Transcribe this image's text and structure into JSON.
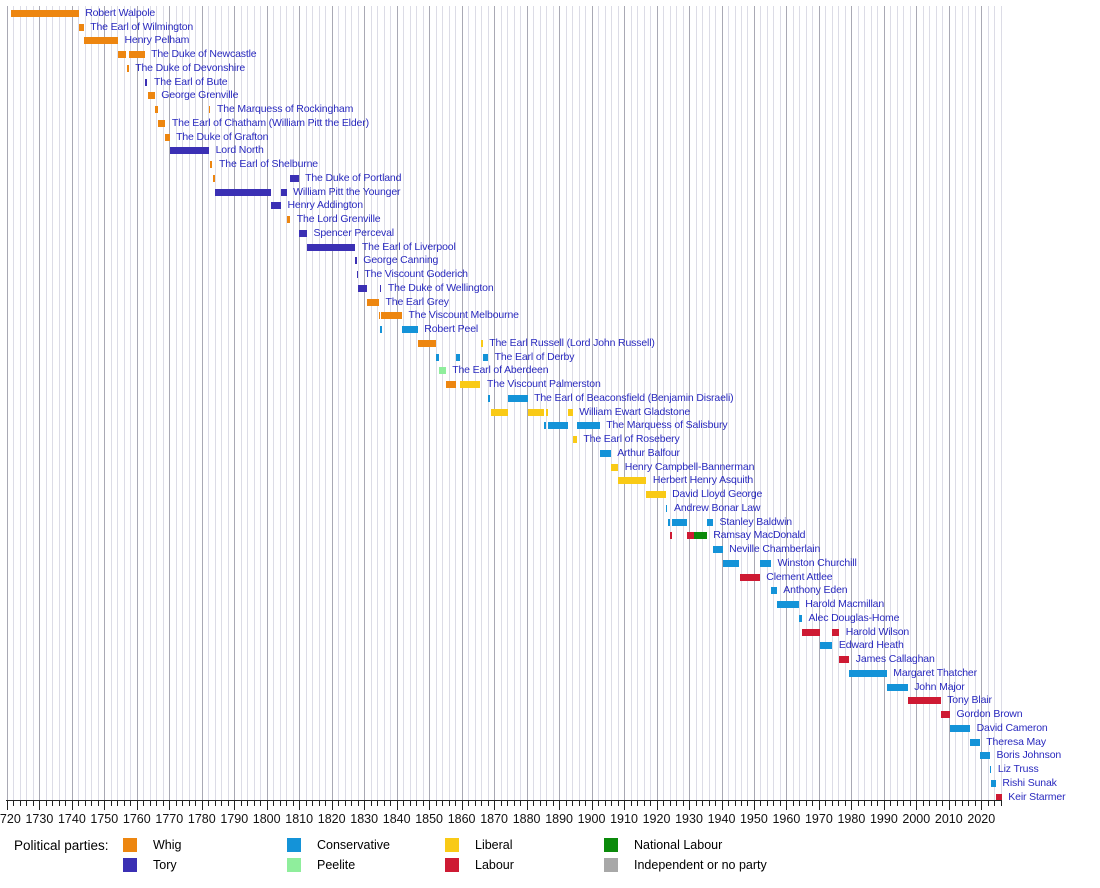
{
  "chart_data": {
    "type": "bar",
    "subtype": "horizontal-timeline-gantt",
    "title": "",
    "xlabel": "",
    "ylabel": "",
    "axis": {
      "start_year": 1720,
      "end_year": 2026,
      "minor_tick_step_years": 2,
      "major_tick_step_years": 10,
      "decade_labels": [
        1720,
        1730,
        1740,
        1750,
        1760,
        1770,
        1780,
        1790,
        1800,
        1810,
        1820,
        1830,
        1840,
        1850,
        1860,
        1870,
        1880,
        1890,
        1900,
        1910,
        1920,
        1930,
        1940,
        1950,
        1960,
        1970,
        1980,
        1990,
        2000,
        2010,
        2020
      ],
      "grid": "on",
      "gridline_step_years": 2
    },
    "colors": {
      "whig": "#ed8610",
      "tory": "#3b30b4",
      "conservative": "#1493d8",
      "peelite": "#8fee9c",
      "liberal": "#f9ca16",
      "labour": "#ce1a33",
      "national_labour": "#0b8a0b",
      "independent": "#a8a8a8",
      "label_text": "#2929be",
      "gridline_minor": "#dcdce6",
      "gridline_major": "#a9a9b4",
      "axis": "#222222"
    },
    "legend": {
      "heading": "Political parties:",
      "position": "bottom",
      "columns": [
        [
          {
            "label": "Whig",
            "party": "whig"
          },
          {
            "label": "Tory",
            "party": "tory"
          }
        ],
        [
          {
            "label": "Conservative",
            "party": "conservative"
          },
          {
            "label": "Peelite",
            "party": "peelite"
          }
        ],
        [
          {
            "label": "Liberal",
            "party": "liberal"
          },
          {
            "label": "Labour",
            "party": "labour"
          }
        ],
        [
          {
            "label": "National Labour",
            "party": "national_labour"
          },
          {
            "label": "Independent or no party",
            "party": "independent"
          }
        ]
      ]
    },
    "prime_ministers": [
      {
        "name": "Robert Walpole",
        "segments": [
          {
            "party": "whig",
            "start": 1721.25,
            "end": 1742.1
          }
        ]
      },
      {
        "name": "The Earl of Wilmington",
        "segments": [
          {
            "party": "whig",
            "start": 1742.15,
            "end": 1743.65
          }
        ]
      },
      {
        "name": "Henry Pelham",
        "segments": [
          {
            "party": "whig",
            "start": 1743.65,
            "end": 1754.2
          }
        ]
      },
      {
        "name": "The Duke of Newcastle",
        "segments": [
          {
            "party": "whig",
            "start": 1754.25,
            "end": 1756.85
          },
          {
            "party": "whig",
            "start": 1757.5,
            "end": 1762.4
          }
        ]
      },
      {
        "name": "The Duke of Devonshire",
        "segments": [
          {
            "party": "whig",
            "start": 1756.85,
            "end": 1757.5
          }
        ]
      },
      {
        "name": "The Earl of Bute",
        "segments": [
          {
            "party": "tory",
            "start": 1762.4,
            "end": 1763.3
          }
        ]
      },
      {
        "name": "George Grenville",
        "segments": [
          {
            "party": "whig",
            "start": 1763.3,
            "end": 1765.55
          }
        ]
      },
      {
        "name": "The Marquess of Rockingham",
        "segments": [
          {
            "party": "whig",
            "start": 1765.55,
            "end": 1766.6
          },
          {
            "party": "whig",
            "start": 1782.25,
            "end": 1782.5
          }
        ]
      },
      {
        "name": "The Earl of Chatham (William Pitt the Elder)",
        "segments": [
          {
            "party": "whig",
            "start": 1766.6,
            "end": 1768.8
          }
        ]
      },
      {
        "name": "The Duke of Grafton",
        "segments": [
          {
            "party": "whig",
            "start": 1768.8,
            "end": 1770.1
          }
        ]
      },
      {
        "name": "Lord North",
        "segments": [
          {
            "party": "tory",
            "start": 1770.1,
            "end": 1782.25
          }
        ]
      },
      {
        "name": "The Earl of Shelburne",
        "segments": [
          {
            "party": "whig",
            "start": 1782.5,
            "end": 1783.3
          }
        ]
      },
      {
        "name": "The Duke of Portland",
        "segments": [
          {
            "party": "whig",
            "start": 1783.3,
            "end": 1783.95
          },
          {
            "party": "tory",
            "start": 1807.25,
            "end": 1809.8
          }
        ]
      },
      {
        "name": "William Pitt the Younger",
        "segments": [
          {
            "party": "tory",
            "start": 1783.95,
            "end": 1801.2
          },
          {
            "party": "tory",
            "start": 1804.4,
            "end": 1806.1
          }
        ]
      },
      {
        "name": "Henry Addington",
        "segments": [
          {
            "party": "tory",
            "start": 1801.2,
            "end": 1804.4
          }
        ]
      },
      {
        "name": "The Lord Grenville",
        "segments": [
          {
            "party": "whig",
            "start": 1806.1,
            "end": 1807.25
          }
        ]
      },
      {
        "name": "Spencer Perceval",
        "segments": [
          {
            "party": "tory",
            "start": 1809.8,
            "end": 1812.4
          }
        ]
      },
      {
        "name": "The Earl of Liverpool",
        "segments": [
          {
            "party": "tory",
            "start": 1812.45,
            "end": 1827.3
          }
        ]
      },
      {
        "name": "George Canning",
        "segments": [
          {
            "party": "tory",
            "start": 1827.3,
            "end": 1827.6
          }
        ]
      },
      {
        "name": "The Viscount Goderich",
        "segments": [
          {
            "party": "tory",
            "start": 1827.65,
            "end": 1828.05
          }
        ]
      },
      {
        "name": "The Duke of Wellington",
        "segments": [
          {
            "party": "tory",
            "start": 1828.05,
            "end": 1830.9
          },
          {
            "party": "tory",
            "start": 1834.88,
            "end": 1834.95
          }
        ]
      },
      {
        "name": "The Earl Grey",
        "segments": [
          {
            "party": "whig",
            "start": 1830.9,
            "end": 1834.55
          }
        ]
      },
      {
        "name": "The Viscount Melbourne",
        "segments": [
          {
            "party": "whig",
            "start": 1834.55,
            "end": 1834.88
          },
          {
            "party": "whig",
            "start": 1835.3,
            "end": 1841.65
          }
        ]
      },
      {
        "name": "Robert Peel",
        "segments": [
          {
            "party": "conservative",
            "start": 1834.95,
            "end": 1835.3
          },
          {
            "party": "conservative",
            "start": 1841.65,
            "end": 1846.5
          }
        ]
      },
      {
        "name": "The Earl Russell (Lord John Russell)",
        "segments": [
          {
            "party": "whig",
            "start": 1846.5,
            "end": 1852.15
          },
          {
            "party": "liberal",
            "start": 1865.85,
            "end": 1866.5
          }
        ]
      },
      {
        "name": "The Earl of Derby",
        "segments": [
          {
            "party": "conservative",
            "start": 1852.15,
            "end": 1852.95
          },
          {
            "party": "conservative",
            "start": 1858.15,
            "end": 1859.45
          },
          {
            "party": "conservative",
            "start": 1866.5,
            "end": 1868.15
          }
        ]
      },
      {
        "name": "The Earl of Aberdeen",
        "segments": [
          {
            "party": "peelite",
            "start": 1852.95,
            "end": 1855.1
          }
        ]
      },
      {
        "name": "The Viscount Palmerston",
        "segments": [
          {
            "party": "whig",
            "start": 1855.1,
            "end": 1858.15
          },
          {
            "party": "liberal",
            "start": 1859.45,
            "end": 1865.8
          }
        ]
      },
      {
        "name": "The Earl of Beaconsfield (Benjamin Disraeli)",
        "segments": [
          {
            "party": "conservative",
            "start": 1868.15,
            "end": 1868.9
          },
          {
            "party": "conservative",
            "start": 1874.15,
            "end": 1880.3
          }
        ]
      },
      {
        "name": "William Ewart Gladstone",
        "segments": [
          {
            "party": "liberal",
            "start": 1868.9,
            "end": 1874.15
          },
          {
            "party": "liberal",
            "start": 1880.3,
            "end": 1885.45
          },
          {
            "party": "liberal",
            "start": 1886.1,
            "end": 1886.6
          },
          {
            "party": "liberal",
            "start": 1892.6,
            "end": 1894.2
          }
        ]
      },
      {
        "name": "The Marquess of Salisbury",
        "segments": [
          {
            "party": "conservative",
            "start": 1885.45,
            "end": 1886.1
          },
          {
            "party": "conservative",
            "start": 1886.6,
            "end": 1892.6
          },
          {
            "party": "conservative",
            "start": 1895.5,
            "end": 1902.55
          }
        ]
      },
      {
        "name": "The Earl of Rosebery",
        "segments": [
          {
            "party": "liberal",
            "start": 1894.2,
            "end": 1895.5
          }
        ]
      },
      {
        "name": "Arthur Balfour",
        "segments": [
          {
            "party": "conservative",
            "start": 1902.55,
            "end": 1905.9
          }
        ]
      },
      {
        "name": "Henry Campbell-Bannerman",
        "segments": [
          {
            "party": "liberal",
            "start": 1905.9,
            "end": 1908.25
          }
        ]
      },
      {
        "name": "Herbert Henry Asquith",
        "segments": [
          {
            "party": "liberal",
            "start": 1908.25,
            "end": 1916.9
          }
        ]
      },
      {
        "name": "David Lloyd George",
        "segments": [
          {
            "party": "liberal",
            "start": 1916.9,
            "end": 1922.8
          }
        ]
      },
      {
        "name": "Andrew Bonar Law",
        "segments": [
          {
            "party": "conservative",
            "start": 1922.8,
            "end": 1923.4
          }
        ]
      },
      {
        "name": "Stanley Baldwin",
        "segments": [
          {
            "party": "conservative",
            "start": 1923.4,
            "end": 1924.05
          },
          {
            "party": "conservative",
            "start": 1924.85,
            "end": 1929.4
          },
          {
            "party": "conservative",
            "start": 1935.45,
            "end": 1937.4
          }
        ]
      },
      {
        "name": "Ramsay MacDonald",
        "segments": [
          {
            "party": "labour",
            "start": 1924.05,
            "end": 1924.85
          },
          {
            "party": "labour",
            "start": 1929.4,
            "end": 1931.65
          },
          {
            "party": "national_labour",
            "start": 1931.65,
            "end": 1935.45
          }
        ]
      },
      {
        "name": "Neville Chamberlain",
        "segments": [
          {
            "party": "conservative",
            "start": 1937.4,
            "end": 1940.35
          }
        ]
      },
      {
        "name": "Winston Churchill",
        "segments": [
          {
            "party": "conservative",
            "start": 1940.35,
            "end": 1945.55
          },
          {
            "party": "conservative",
            "start": 1951.8,
            "end": 1955.25
          }
        ]
      },
      {
        "name": "Clement Attlee",
        "segments": [
          {
            "party": "labour",
            "start": 1945.55,
            "end": 1951.8
          }
        ]
      },
      {
        "name": "Anthony Eden",
        "segments": [
          {
            "party": "conservative",
            "start": 1955.25,
            "end": 1957.05
          }
        ]
      },
      {
        "name": "Harold Macmillan",
        "segments": [
          {
            "party": "conservative",
            "start": 1957.05,
            "end": 1963.8
          }
        ]
      },
      {
        "name": "Alec Douglas-Home",
        "segments": [
          {
            "party": "conservative",
            "start": 1963.8,
            "end": 1964.8
          }
        ]
      },
      {
        "name": "Harold Wilson",
        "segments": [
          {
            "party": "labour",
            "start": 1964.8,
            "end": 1970.45
          },
          {
            "party": "labour",
            "start": 1974.15,
            "end": 1976.25
          }
        ]
      },
      {
        "name": "Edward Heath",
        "segments": [
          {
            "party": "conservative",
            "start": 1970.45,
            "end": 1974.15
          }
        ]
      },
      {
        "name": "James Callaghan",
        "segments": [
          {
            "party": "labour",
            "start": 1976.25,
            "end": 1979.35
          }
        ]
      },
      {
        "name": "Margaret Thatcher",
        "segments": [
          {
            "party": "conservative",
            "start": 1979.35,
            "end": 1990.9
          }
        ]
      },
      {
        "name": "John Major",
        "segments": [
          {
            "party": "conservative",
            "start": 1990.9,
            "end": 1997.35
          }
        ]
      },
      {
        "name": "Tony Blair",
        "segments": [
          {
            "party": "labour",
            "start": 1997.35,
            "end": 2007.5
          }
        ]
      },
      {
        "name": "Gordon Brown",
        "segments": [
          {
            "party": "labour",
            "start": 2007.5,
            "end": 2010.35
          }
        ]
      },
      {
        "name": "David Cameron",
        "segments": [
          {
            "party": "conservative",
            "start": 2010.35,
            "end": 2016.55
          }
        ]
      },
      {
        "name": "Theresa May",
        "segments": [
          {
            "party": "conservative",
            "start": 2016.55,
            "end": 2019.55
          }
        ]
      },
      {
        "name": "Boris Johnson",
        "segments": [
          {
            "party": "conservative",
            "start": 2019.55,
            "end": 2022.68
          }
        ]
      },
      {
        "name": "Liz Truss",
        "segments": [
          {
            "party": "conservative",
            "start": 2022.68,
            "end": 2022.82
          }
        ]
      },
      {
        "name": "Rishi Sunak",
        "segments": [
          {
            "party": "conservative",
            "start": 2022.82,
            "end": 2024.5
          }
        ]
      },
      {
        "name": "Keir Starmer",
        "segments": [
          {
            "party": "labour",
            "start": 2024.5,
            "end": 2026.3
          }
        ]
      }
    ]
  }
}
